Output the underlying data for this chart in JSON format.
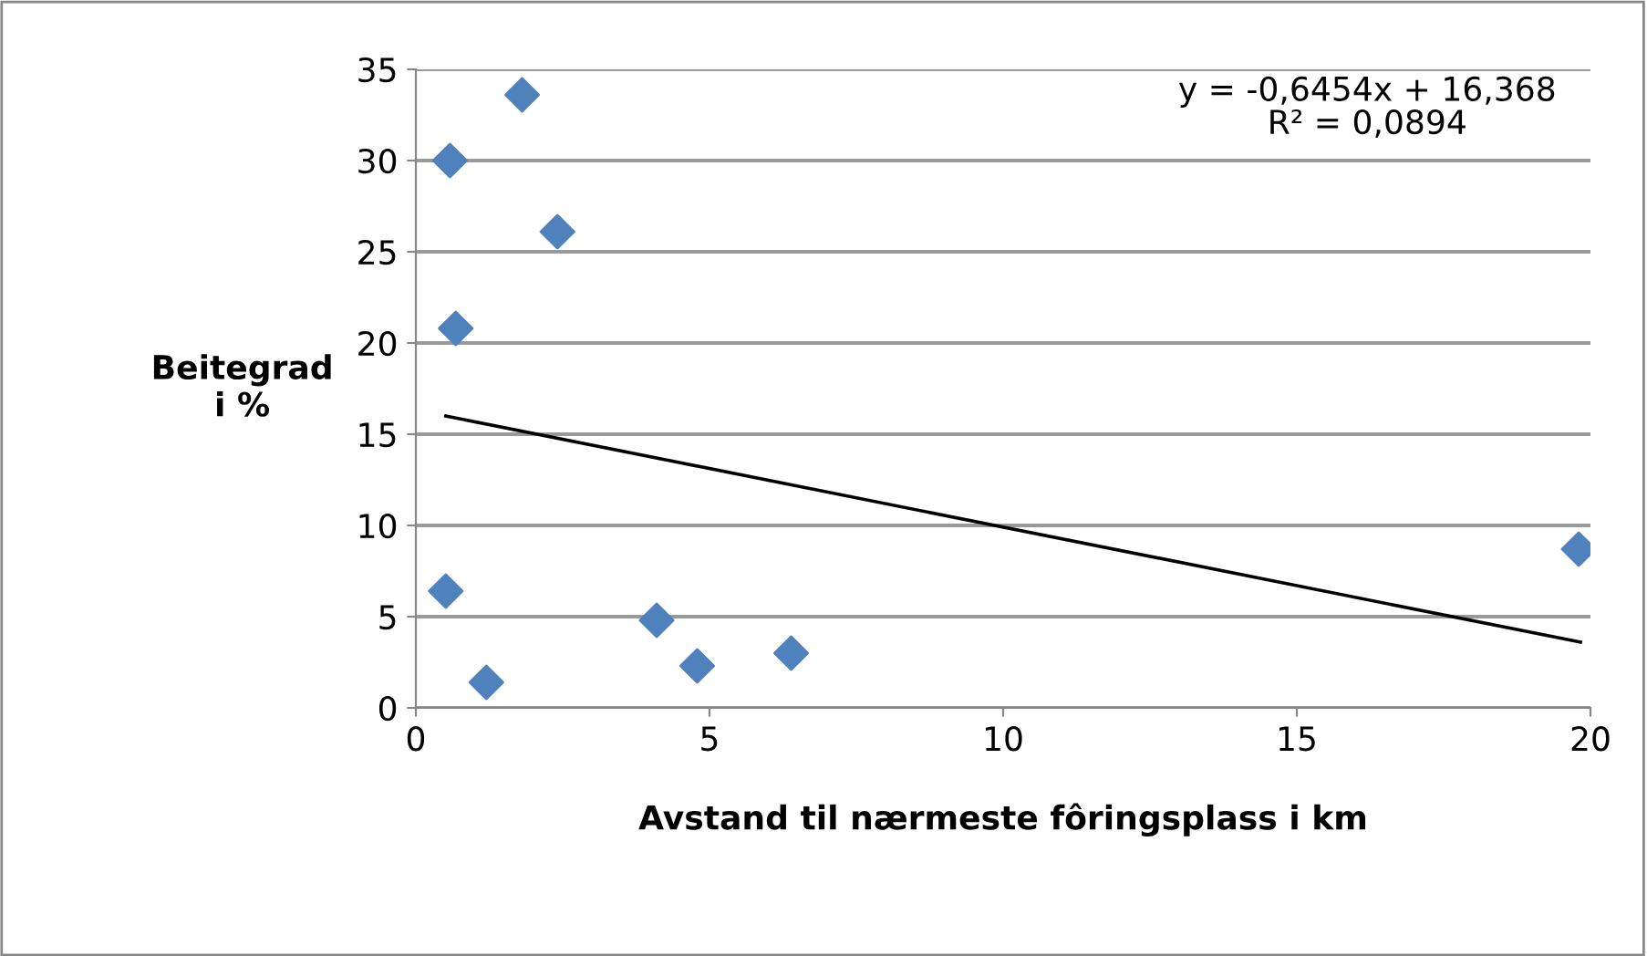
{
  "chart_data": {
    "type": "scatter",
    "xlabel": "Avstand til nærmeste fôringsplass i km",
    "ylabel": "Beitegrad\ni %",
    "x": [
      0.51,
      0.58,
      0.68,
      1.2,
      1.81,
      2.41,
      4.1,
      4.79,
      6.39,
      19.8
    ],
    "series": [
      {
        "color": "#4f81bd",
        "marker": "diamond",
        "values": [
          6.4,
          30.0,
          20.8,
          1.4,
          33.6,
          26.1,
          4.8,
          2.3,
          3.0,
          8.7
        ]
      },
      {
        "type": "line",
        "color": "#000000",
        "marker": "none",
        "x": [
          0.51,
          19.83
        ],
        "values": [
          16.0,
          3.6
        ]
      }
    ],
    "annotations": [
      "y = -0,6454x + 16,368\nR² = 0,0894"
    ],
    "xlim": [
      0,
      20
    ],
    "xticks": [
      0,
      5,
      10,
      15,
      20
    ],
    "ylim": [
      0,
      35
    ],
    "yticks": [
      0,
      5,
      10,
      15,
      20,
      25,
      30,
      35
    ],
    "grid": "y",
    "legend": false
  }
}
